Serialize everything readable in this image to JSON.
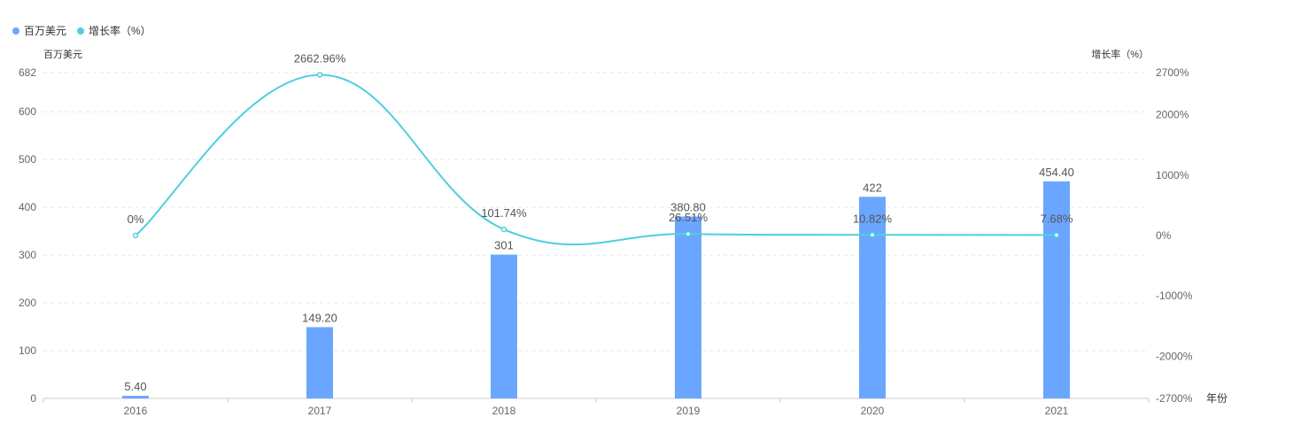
{
  "legend": {
    "bar_label": "百万美元",
    "line_label": "增长率（%）"
  },
  "chart_data": {
    "type": "bar",
    "categories": [
      "2016",
      "2017",
      "2018",
      "2019",
      "2020",
      "2021"
    ],
    "xlabel": "年份",
    "ylabel_left": "百万美元",
    "ylabel_right": "增长率（%）",
    "ylim_left": [
      0,
      682
    ],
    "yticks_left": [
      "0",
      "100",
      "200",
      "300",
      "400",
      "500",
      "600",
      "682"
    ],
    "ylim_right": [
      -2700,
      2700
    ],
    "yticks_right": [
      "-2700%",
      "-2000%",
      "-1000%",
      "0%",
      "1000%",
      "2000%",
      "2700%"
    ],
    "grid": "horizontal dashed",
    "series": [
      {
        "name": "百万美元",
        "type": "bar",
        "values": [
          5.4,
          149.2,
          301,
          380.8,
          422,
          454.4
        ],
        "labels": [
          "5.40",
          "149.20",
          "301",
          "380.80",
          "422",
          "454.40"
        ],
        "color": "#6aa6ff"
      },
      {
        "name": "增长率（%）",
        "type": "line",
        "axis": "right",
        "values": [
          0,
          2662.96,
          101.74,
          26.51,
          10.82,
          7.68
        ],
        "labels": [
          "0%",
          "2662.96%",
          "101.74%",
          "26.51%",
          "10.82%",
          "7.68%"
        ],
        "color": "#4fcfdd"
      }
    ]
  }
}
